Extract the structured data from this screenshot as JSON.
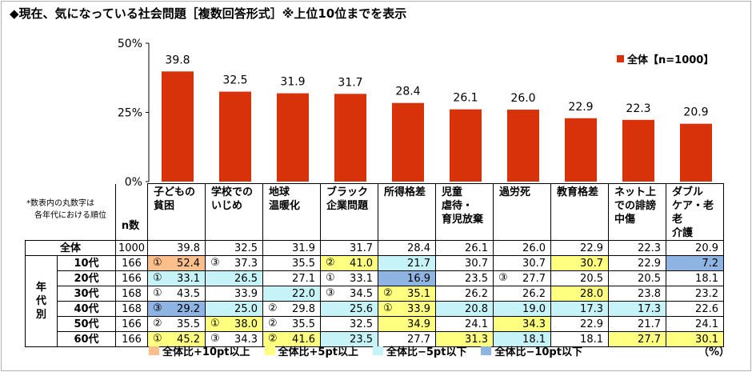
{
  "title": "◆現在、気になっている社会問題［複数回答形式］※上位10位までを表示",
  "legend_label": "全体【n=1000】",
  "note": [
    "*数表内の丸数字は",
    "各年代における順位"
  ],
  "n_label": "n数",
  "group_label": "年代別",
  "unit": "（%）",
  "colors": {
    "bar": "#d8320a",
    "plus10": "#fbbf8c",
    "plus5": "#ffff80",
    "minus5": "#c6f3f8",
    "minus10": "#8db4e2"
  },
  "bottom_legend": [
    {
      "label": "全体比+10pt以上",
      "color": "#fbbf8c"
    },
    {
      "label": "全体比+5pt以上",
      "color": "#ffff80"
    },
    {
      "label": "全体比−5pt以下",
      "color": "#c6f3f8"
    },
    {
      "label": "全体比−10pt以下",
      "color": "#8db4e2"
    }
  ],
  "chart_data": {
    "type": "bar",
    "categories": [
      "子どもの貧困",
      "学校でのいじめ",
      "地球温暖化",
      "ブラック企業問題",
      "所得格差",
      "児童虐待・育児放棄",
      "過労死",
      "教育格差",
      "ネット上での誹謗中傷",
      "ダブルケア・老老介護"
    ],
    "values": [
      39.8,
      32.5,
      31.9,
      31.7,
      28.4,
      26.1,
      26.0,
      22.9,
      22.3,
      20.9
    ],
    "ylim": [
      0,
      50
    ],
    "yticks": [
      "0%",
      "25%",
      "50%"
    ],
    "series": [
      {
        "name": "全体【n=1000】",
        "values": [
          39.8,
          32.5,
          31.9,
          31.7,
          28.4,
          26.1,
          26.0,
          22.9,
          22.3,
          20.9
        ]
      }
    ]
  },
  "table": {
    "headers": [
      "子どもの\n貧困",
      "学校での\nいじめ",
      "地球\n温暖化",
      "ブラック\n企業問題",
      "所得格差",
      "児童\n虐待・\n育児放棄",
      "過労死",
      "教育格差",
      "ネット上\nでの誹謗\n中傷",
      "ダブル\nケア・老老\n介護"
    ],
    "rows": [
      {
        "label": "全体",
        "n": "1000",
        "cells": [
          {
            "v": "39.8",
            "r": "",
            "c": ""
          },
          {
            "v": "32.5",
            "r": "",
            "c": ""
          },
          {
            "v": "31.9",
            "r": "",
            "c": ""
          },
          {
            "v": "31.7",
            "r": "",
            "c": ""
          },
          {
            "v": "28.4",
            "r": "",
            "c": ""
          },
          {
            "v": "26.1",
            "r": "",
            "c": ""
          },
          {
            "v": "26.0",
            "r": "",
            "c": ""
          },
          {
            "v": "22.9",
            "r": "",
            "c": ""
          },
          {
            "v": "22.3",
            "r": "",
            "c": ""
          },
          {
            "v": "20.9",
            "r": "",
            "c": ""
          }
        ]
      },
      {
        "label": "10代",
        "n": "166",
        "cells": [
          {
            "v": "52.4",
            "r": "①",
            "c": "plus10"
          },
          {
            "v": "37.3",
            "r": "③",
            "c": ""
          },
          {
            "v": "35.5",
            "r": "",
            "c": ""
          },
          {
            "v": "41.0",
            "r": "②",
            "c": "plus5"
          },
          {
            "v": "21.7",
            "r": "",
            "c": "minus5"
          },
          {
            "v": "30.7",
            "r": "",
            "c": ""
          },
          {
            "v": "30.7",
            "r": "",
            "c": ""
          },
          {
            "v": "30.7",
            "r": "",
            "c": "plus5"
          },
          {
            "v": "22.9",
            "r": "",
            "c": ""
          },
          {
            "v": "7.2",
            "r": "",
            "c": "minus10"
          }
        ]
      },
      {
        "label": "20代",
        "n": "166",
        "cells": [
          {
            "v": "33.1",
            "r": "①",
            "c": "minus5"
          },
          {
            "v": "26.5",
            "r": "",
            "c": "minus5"
          },
          {
            "v": "27.1",
            "r": "",
            "c": ""
          },
          {
            "v": "33.1",
            "r": "①",
            "c": ""
          },
          {
            "v": "16.9",
            "r": "",
            "c": "minus10"
          },
          {
            "v": "23.5",
            "r": "",
            "c": ""
          },
          {
            "v": "27.7",
            "r": "③",
            "c": ""
          },
          {
            "v": "20.5",
            "r": "",
            "c": ""
          },
          {
            "v": "20.5",
            "r": "",
            "c": ""
          },
          {
            "v": "18.1",
            "r": "",
            "c": ""
          }
        ]
      },
      {
        "label": "30代",
        "n": "168",
        "cells": [
          {
            "v": "43.5",
            "r": "①",
            "c": ""
          },
          {
            "v": "33.9",
            "r": "",
            "c": ""
          },
          {
            "v": "22.0",
            "r": "",
            "c": "minus5"
          },
          {
            "v": "34.5",
            "r": "③",
            "c": ""
          },
          {
            "v": "35.1",
            "r": "②",
            "c": "plus5"
          },
          {
            "v": "26.2",
            "r": "",
            "c": ""
          },
          {
            "v": "26.2",
            "r": "",
            "c": ""
          },
          {
            "v": "28.0",
            "r": "",
            "c": "plus5"
          },
          {
            "v": "23.8",
            "r": "",
            "c": ""
          },
          {
            "v": "23.2",
            "r": "",
            "c": ""
          }
        ]
      },
      {
        "label": "40代",
        "n": "168",
        "cells": [
          {
            "v": "29.2",
            "r": "③",
            "c": "minus10"
          },
          {
            "v": "25.0",
            "r": "",
            "c": "minus5"
          },
          {
            "v": "29.8",
            "r": "②",
            "c": ""
          },
          {
            "v": "25.6",
            "r": "",
            "c": "minus5"
          },
          {
            "v": "33.9",
            "r": "①",
            "c": "plus5"
          },
          {
            "v": "20.8",
            "r": "",
            "c": "minus5"
          },
          {
            "v": "19.0",
            "r": "",
            "c": "minus5"
          },
          {
            "v": "17.3",
            "r": "",
            "c": "minus5"
          },
          {
            "v": "17.3",
            "r": "",
            "c": "minus5"
          },
          {
            "v": "22.6",
            "r": "",
            "c": ""
          }
        ]
      },
      {
        "label": "50代",
        "n": "166",
        "cells": [
          {
            "v": "35.5",
            "r": "②",
            "c": ""
          },
          {
            "v": "38.0",
            "r": "①",
            "c": "plus5"
          },
          {
            "v": "35.5",
            "r": "②",
            "c": ""
          },
          {
            "v": "32.5",
            "r": "",
            "c": ""
          },
          {
            "v": "34.9",
            "r": "",
            "c": "plus5"
          },
          {
            "v": "24.1",
            "r": "",
            "c": ""
          },
          {
            "v": "34.3",
            "r": "",
            "c": "plus5"
          },
          {
            "v": "22.9",
            "r": "",
            "c": ""
          },
          {
            "v": "21.7",
            "r": "",
            "c": ""
          },
          {
            "v": "24.1",
            "r": "",
            "c": ""
          }
        ]
      },
      {
        "label": "60代",
        "n": "166",
        "cells": [
          {
            "v": "45.2",
            "r": "①",
            "c": "plus5"
          },
          {
            "v": "34.3",
            "r": "③",
            "c": ""
          },
          {
            "v": "41.6",
            "r": "②",
            "c": "plus5"
          },
          {
            "v": "23.5",
            "r": "",
            "c": "minus5"
          },
          {
            "v": "27.7",
            "r": "",
            "c": ""
          },
          {
            "v": "31.3",
            "r": "",
            "c": "plus5"
          },
          {
            "v": "18.1",
            "r": "",
            "c": "minus5"
          },
          {
            "v": "18.1",
            "r": "",
            "c": ""
          },
          {
            "v": "27.7",
            "r": "",
            "c": "plus5"
          },
          {
            "v": "30.1",
            "r": "",
            "c": "plus5"
          }
        ]
      }
    ]
  }
}
